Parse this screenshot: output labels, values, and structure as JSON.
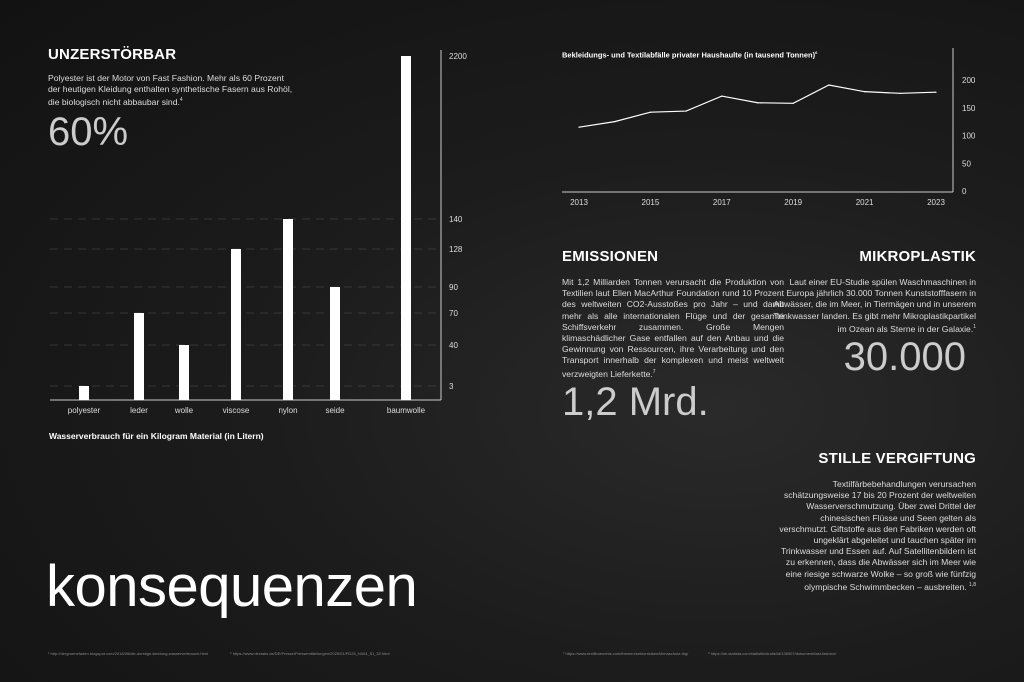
{
  "unzerstoerbar": {
    "title": "UNZERSTÖRBAR",
    "text": "Polyester ist der Motor von Fast Fashion. Mehr als 60 Prozent der heutigen Kleidung enthalten synthetische Fasern aus Rohöl, die biologisch nicht abbaubar sind.",
    "note": "4",
    "stat": "60%"
  },
  "emissionen": {
    "title": "EMISSIONEN",
    "text": "Mit 1,2 Milliarden Tonnen verursacht die Produktion von Textilien laut Ellen MacArthur Foundation rund 10 Prozent des weltweiten CO2-Ausstoßes pro Jahr – und damit mehr als alle internationalen Flüge und der gesamte Schiffsverkehr zusammen. Große Mengen klimaschädlicher Gase entfallen auf den Anbau und die Gewinnung von Ressourcen, ihre Verarbeitung und den Transport innerhalb der komplexen und meist weltweit verzweigten Lieferkette.",
    "note": "7",
    "stat": "1,2 Mrd."
  },
  "mikroplastik": {
    "title": "MIKROPLASTIK",
    "text": "Laut einer EU-Studie spülen Waschmaschinen in Europa jährlich 30.000 Tonnen Kunststofffasern in Abwässer, die im Meer, in Tiermägen und in unserem Trinkwasser landen. Es gibt mehr Mikroplastikpartikel im Ozean als Sterne in der Galaxie.",
    "note": "1",
    "stat": "30.000"
  },
  "vergiftung": {
    "title": "STILLE VERGIFTUNG",
    "text": "Textilfärbebehandlungen verursachen schätzungsweise 17 bis 20 Prozent der weltweiten Wasserverschmutzung. Über zwei Drittel der chinesischen Flüsse und Seen gelten als verschmutzt. Giftstoffe aus den Fabriken werden oft ungeklärt abgeleitet und tauchen später im Trinkwasser und Essen auf. Auf Satellitenbildern ist zu erkennen, dass die Abwässer sich im Meer wie eine riesige schwarze Wolke – so groß wie fünfzig olympische Schwimmbecken – ausbreiten.",
    "note": "1,8"
  },
  "headline": "konsequenzen",
  "footnotes": [
    "¹ http://dergruenefaden.blogspot.com/2018/06/die-durstige-kleidung-wasserverbrauch.html",
    "⁶ https://www.destatis.de/DE/Presse/Pressemitteilungen/2025/01/PD25_N004_51_32.html",
    "⁷ https://www.textilbuendnis.com/themen/sektorrisiken/klimaschutz-thg/",
    "⁸ https://de.statista.com/statistik/studie/id/136907/dokument/fast-fashion/"
  ],
  "colors": {
    "background": "#1a1a1a",
    "bars": "#ffffff",
    "line": "#ffffff",
    "text": "#dddddd"
  },
  "chart_data": [
    {
      "type": "bar",
      "title": "Wasserverbrauch für ein Kilogram Material (in Litern)",
      "categories": [
        "polyester",
        "leder",
        "wolle",
        "viscose",
        "nylon",
        "seide",
        "baumwolle"
      ],
      "values": [
        3,
        70,
        40,
        128,
        140,
        90,
        2200
      ],
      "yticks": [
        "3",
        "40",
        "70",
        "90",
        "128",
        "140",
        "2200"
      ],
      "yaxis": "right, non-linear scale",
      "grid": "dashed horizontal"
    },
    {
      "type": "line",
      "title": "Bekleidungs- und Textilabfälle privater Haushaulte (in tausend Tonnen)",
      "title_note": "6",
      "x": [
        2013,
        2014,
        2015,
        2016,
        2017,
        2018,
        2019,
        2020,
        2021,
        2022,
        2023
      ],
      "values": [
        115,
        125,
        142,
        144,
        171,
        159,
        158,
        191,
        179,
        176,
        178
      ],
      "xticks": [
        "2013",
        "2015",
        "2017",
        "2019",
        "2021",
        "2023"
      ],
      "yticks": [
        "0",
        "50",
        "100",
        "150",
        "200"
      ],
      "ylim": [
        0,
        230
      ],
      "yaxis": "right",
      "grid": false
    }
  ]
}
